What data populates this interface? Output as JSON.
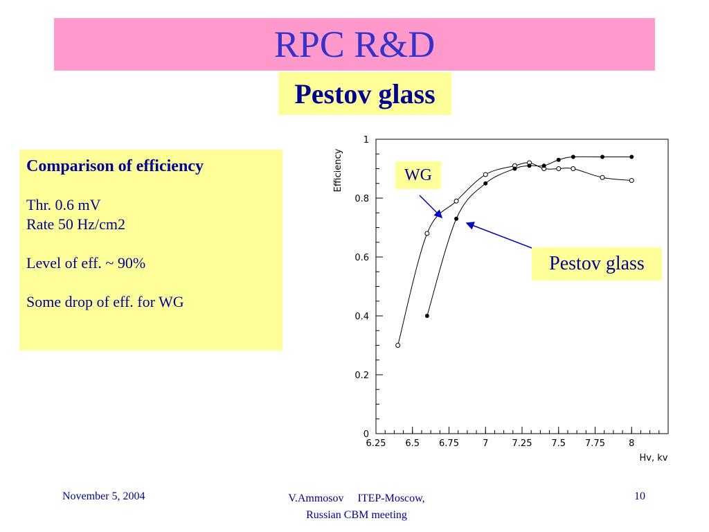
{
  "slide": {
    "title": "RPC R&D",
    "subtitle": "Pestov glass"
  },
  "infobox": {
    "heading": "Comparison of efficiency",
    "line1": "Thr. 0.6 mV",
    "line2": "Rate 50 Hz/cm2",
    "line3": "Level of eff. ~ 90%",
    "line4": "Some drop of eff. for WG"
  },
  "callouts": {
    "wg": "WG",
    "pestov": "Pestov glass"
  },
  "footer": {
    "date": "November 5, 2004",
    "center_line1": "V.Ammosov     ITEP-Moscow,",
    "center_line2": "Russian CBM meeting",
    "page": "10"
  },
  "colors": {
    "title_bg": "#ff99cc",
    "title_text": "#3333cc",
    "callout_bg": "#ffff99",
    "text_blue": "#000099",
    "arrow": "#0000cc"
  },
  "chart_data": {
    "type": "line",
    "xlabel": "Hv, kv",
    "ylabel": "Efficiency",
    "xlim": [
      6.25,
      8.25
    ],
    "ylim": [
      0,
      1
    ],
    "x_ticks": [
      "6.25",
      "6.5",
      "6.75",
      "7",
      "7.25",
      "7.5",
      "7.75",
      "8"
    ],
    "y_ticks": [
      "0",
      "0.2",
      "0.4",
      "0.6",
      "0.8",
      "1"
    ],
    "grid": false,
    "series": [
      {
        "name": "WG",
        "marker": "open-circle",
        "x": [
          6.4,
          6.6,
          6.8,
          7.0,
          7.2,
          7.3,
          7.4,
          7.5,
          7.6,
          7.8,
          8.0
        ],
        "values": [
          0.3,
          0.68,
          0.79,
          0.88,
          0.91,
          0.92,
          0.9,
          0.9,
          0.9,
          0.87,
          0.86
        ]
      },
      {
        "name": "Pestov glass",
        "marker": "filled-circle",
        "x": [
          6.6,
          6.8,
          7.0,
          7.2,
          7.3,
          7.4,
          7.5,
          7.6,
          7.8,
          8.0
        ],
        "values": [
          0.4,
          0.73,
          0.85,
          0.9,
          0.91,
          0.91,
          0.93,
          0.94,
          0.94,
          0.94
        ]
      }
    ]
  }
}
